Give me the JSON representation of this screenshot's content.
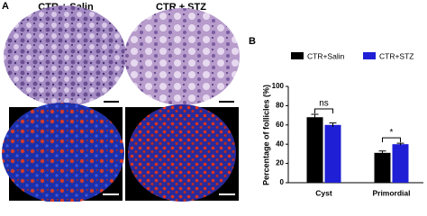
{
  "figure": {
    "panel_a_label": "A",
    "columns": [
      "CTR + Salin",
      "CTR + STZ"
    ],
    "panel_b_label": "B"
  },
  "chart_data": {
    "type": "bar",
    "y_label": "Percentage of follicles (%)",
    "categories": [
      "Cyst",
      "Primordial"
    ],
    "series": [
      {
        "name": "CTR+Salin",
        "color": "#000000",
        "values": [
          68,
          31
        ],
        "errors": [
          3,
          2
        ]
      },
      {
        "name": "CTR+STZ",
        "color": "#1f1fd6",
        "values": [
          60,
          40
        ],
        "errors": [
          2,
          1
        ]
      }
    ],
    "ylim": [
      0,
      100
    ],
    "yticks": [
      0,
      20,
      40,
      60,
      80,
      100
    ],
    "annotations": [
      "ns",
      "*"
    ]
  }
}
